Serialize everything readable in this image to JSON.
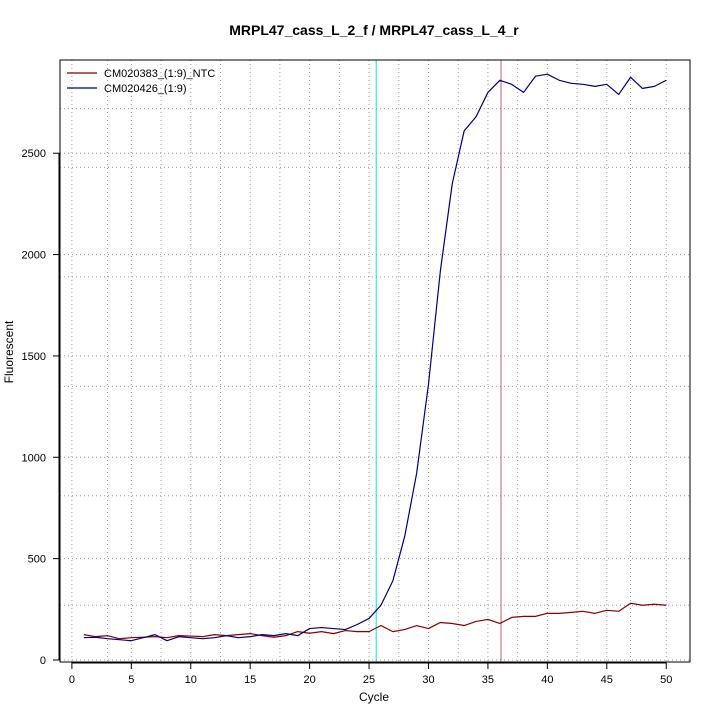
{
  "chart_data": {
    "type": "line",
    "title": "MRPL47_cass_L_2_f / MRPL47_cass_L_4_r",
    "xlabel": "Cycle",
    "ylabel": "Fluorescent",
    "xlim": [
      -1.0,
      52.0
    ],
    "ylim": [
      -10,
      2960
    ],
    "x_ticks": [
      0,
      5,
      10,
      15,
      20,
      25,
      30,
      35,
      40,
      45,
      50
    ],
    "y_ticks": [
      0,
      500,
      1000,
      1500,
      2000,
      2500
    ],
    "x_minor_grid": [
      3,
      7.5,
      12.5,
      17.5,
      22.5,
      27.5,
      32.5,
      37.5,
      42.5,
      47
    ],
    "y_minor_grid": [
      270,
      810,
      1350,
      1890,
      2430,
      2720
    ],
    "grid": true,
    "legend_position": "top-left",
    "vlines": [
      {
        "x": 25.6,
        "color": "#00e5e5"
      },
      {
        "x": 36.1,
        "color": "#c06060"
      }
    ],
    "series": [
      {
        "name": "CM020383_(1:9)_NTC",
        "color": "#8b0000",
        "x": [
          1,
          2,
          3,
          4,
          5,
          6,
          7,
          8,
          9,
          10,
          11,
          12,
          13,
          14,
          15,
          16,
          17,
          18,
          19,
          20,
          21,
          22,
          23,
          24,
          25,
          26,
          27,
          28,
          29,
          30,
          31,
          32,
          33,
          34,
          35,
          36,
          37,
          38,
          39,
          40,
          41,
          42,
          43,
          44,
          45,
          46,
          47,
          48,
          49,
          50
        ],
        "values": [
          125,
          115,
          120,
          105,
          110,
          112,
          115,
          110,
          120,
          118,
          115,
          125,
          120,
          125,
          130,
          120,
          112,
          120,
          140,
          132,
          140,
          130,
          145,
          140,
          140,
          170,
          140,
          150,
          170,
          155,
          185,
          180,
          170,
          190,
          200,
          180,
          210,
          215,
          215,
          230,
          230,
          235,
          240,
          230,
          245,
          240,
          280,
          270,
          275,
          270
        ]
      },
      {
        "name": "CM020426_(1:9)",
        "color": "#00007f",
        "x": [
          1,
          2,
          3,
          4,
          5,
          6,
          7,
          8,
          9,
          10,
          11,
          12,
          13,
          14,
          15,
          16,
          17,
          18,
          19,
          20,
          21,
          22,
          23,
          24,
          25,
          26,
          27,
          28,
          29,
          30,
          31,
          32,
          33,
          34,
          35,
          36,
          37,
          38,
          39,
          40,
          41,
          42,
          43,
          44,
          45,
          46,
          47,
          48,
          49,
          50
        ],
        "values": [
          110,
          112,
          105,
          100,
          95,
          110,
          125,
          95,
          115,
          110,
          105,
          110,
          120,
          110,
          115,
          125,
          120,
          130,
          120,
          155,
          160,
          155,
          150,
          175,
          205,
          270,
          390,
          610,
          920,
          1360,
          1920,
          2350,
          2610,
          2680,
          2800,
          2860,
          2840,
          2800,
          2880,
          2890,
          2860,
          2845,
          2840,
          2830,
          2840,
          2790,
          2875,
          2820,
          2830,
          2860
        ]
      }
    ]
  }
}
